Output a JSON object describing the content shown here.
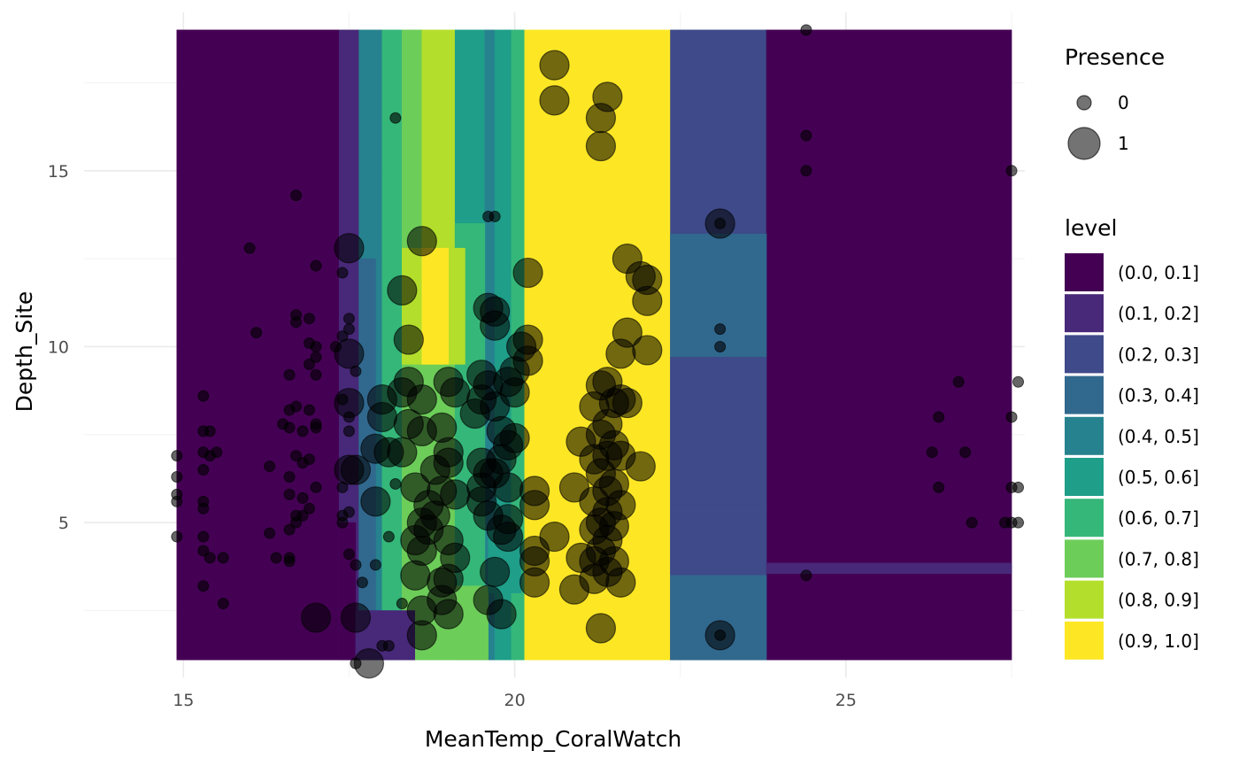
{
  "chart_data": {
    "type": "scatter",
    "subtype": "filled-contour-with-points",
    "title": "",
    "xlabel": "MeanTemp_CoralWatch",
    "ylabel": "Depth_Site",
    "xlim": [
      13.5,
      27.7
    ],
    "ylim": [
      0.6,
      19.5
    ],
    "x_ticks": [
      15,
      20,
      25
    ],
    "y_ticks": [
      5,
      10,
      15
    ],
    "grid": true,
    "legend_position": "right",
    "contour": {
      "x_range": [
        14.9,
        27.5
      ],
      "y_range": [
        1.1,
        19.0
      ],
      "bands": [
        {
          "x": [
            14.9,
            17.35
          ],
          "level": 0
        },
        {
          "x": [
            17.35,
            17.65
          ],
          "level": 1
        },
        {
          "x": [
            17.65,
            18.0
          ],
          "level": 4
        },
        {
          "x": [
            18.0,
            18.3
          ],
          "level": 6
        },
        {
          "x": [
            18.3,
            18.6
          ],
          "level": 7
        },
        {
          "x": [
            18.6,
            19.1
          ],
          "level": 8
        },
        {
          "x": [
            19.1,
            19.55
          ],
          "level": 5
        },
        {
          "x": [
            19.55,
            19.7
          ],
          "level": 4
        },
        {
          "x": [
            19.7,
            19.95
          ],
          "level": 5
        },
        {
          "x": [
            19.95,
            20.15
          ],
          "level": 6
        },
        {
          "x": [
            20.15,
            22.35
          ],
          "level": 9
        },
        {
          "x": [
            22.35,
            23.8
          ],
          "level": 2
        },
        {
          "x": [
            23.8,
            27.5
          ],
          "level": 0
        }
      ],
      "patches": [
        {
          "x": [
            18.3,
            19.25
          ],
          "y": [
            1.1,
            9.5
          ],
          "level": 7
        },
        {
          "x": [
            19.1,
            19.55
          ],
          "y": [
            1.1,
            13.5
          ],
          "level": 6
        },
        {
          "x": [
            18.3,
            19.25
          ],
          "y": [
            9.5,
            12.8
          ],
          "level": 8
        },
        {
          "x": [
            18.6,
            19.0
          ],
          "y": [
            9.5,
            12.8
          ],
          "level": 9
        },
        {
          "x": [
            17.65,
            17.9
          ],
          "y": [
            2.0,
            12.5
          ],
          "level": 3
        },
        {
          "x": [
            17.35,
            17.6
          ],
          "y": [
            1.1,
            5.0
          ],
          "level": 0
        },
        {
          "x": [
            17.6,
            18.5
          ],
          "y": [
            1.1,
            2.5
          ],
          "level": 1
        },
        {
          "x": [
            18.5,
            19.6
          ],
          "y": [
            1.1,
            3.2
          ],
          "level": 7
        },
        {
          "x": [
            19.6,
            20.1
          ],
          "y": [
            3.0,
            4.8
          ],
          "level": 5
        },
        {
          "x": [
            22.35,
            23.8
          ],
          "y": [
            9.7,
            13.2
          ],
          "level": 3
        },
        {
          "x": [
            22.35,
            23.8
          ],
          "y": [
            5.5,
            9.7
          ],
          "level": 2
        },
        {
          "x": [
            22.35,
            23.8
          ],
          "y": [
            3.5,
            5.5
          ],
          "level": 2
        },
        {
          "x": [
            22.35,
            23.8
          ],
          "y": [
            1.1,
            3.5
          ],
          "level": 3
        },
        {
          "x": [
            23.8,
            27.5
          ],
          "y": [
            3.55,
            3.85
          ],
          "level": 1
        }
      ]
    },
    "levels": [
      {
        "label": "(0.0, 0.1]",
        "color": "#440154"
      },
      {
        "label": "(0.1, 0.2]",
        "color": "#482878"
      },
      {
        "label": "(0.2, 0.3]",
        "color": "#3E4A89"
      },
      {
        "label": "(0.3, 0.4]",
        "color": "#31688E"
      },
      {
        "label": "(0.4, 0.5]",
        "color": "#26828E"
      },
      {
        "label": "(0.5, 0.6]",
        "color": "#1F9E89"
      },
      {
        "label": "(0.6, 0.7]",
        "color": "#35B779"
      },
      {
        "label": "(0.7, 0.8]",
        "color": "#6DCD59"
      },
      {
        "label": "(0.8, 0.9]",
        "color": "#B4DE2C"
      },
      {
        "label": "(0.9, 1.0]",
        "color": "#FDE725"
      }
    ],
    "presence_legend": {
      "title": "Presence",
      "entries": [
        {
          "label": "0",
          "value": 0
        },
        {
          "label": "1",
          "value": 1
        }
      ]
    },
    "level_legend_title": "level",
    "points_presence_0": [
      [
        14.9,
        6.9
      ],
      [
        14.9,
        6.3
      ],
      [
        14.9,
        5.8
      ],
      [
        14.9,
        5.6
      ],
      [
        14.9,
        4.6
      ],
      [
        15.3,
        8.6
      ],
      [
        15.3,
        7.6
      ],
      [
        15.3,
        7.0
      ],
      [
        15.3,
        6.5
      ],
      [
        15.3,
        5.6
      ],
      [
        15.3,
        5.4
      ],
      [
        15.3,
        4.6
      ],
      [
        15.3,
        4.2
      ],
      [
        15.3,
        3.2
      ],
      [
        15.4,
        7.6
      ],
      [
        15.4,
        6.9
      ],
      [
        15.4,
        4.0
      ],
      [
        15.5,
        7.0
      ],
      [
        15.6,
        4.0
      ],
      [
        15.6,
        2.7
      ],
      [
        16.0,
        12.8
      ],
      [
        16.1,
        10.4
      ],
      [
        16.3,
        6.6
      ],
      [
        16.3,
        4.7
      ],
      [
        16.4,
        4.0
      ],
      [
        16.5,
        7.8
      ],
      [
        16.6,
        9.2
      ],
      [
        16.6,
        8.2
      ],
      [
        16.6,
        7.7
      ],
      [
        16.6,
        6.3
      ],
      [
        16.6,
        5.8
      ],
      [
        16.6,
        4.8
      ],
      [
        16.6,
        4.0
      ],
      [
        16.6,
        3.9
      ],
      [
        16.7,
        14.3
      ],
      [
        16.7,
        10.9
      ],
      [
        16.7,
        10.7
      ],
      [
        16.7,
        8.3
      ],
      [
        16.7,
        6.9
      ],
      [
        16.7,
        5.2
      ],
      [
        16.7,
        5.0
      ],
      [
        16.8,
        7.6
      ],
      [
        16.8,
        6.7
      ],
      [
        16.8,
        5.7
      ],
      [
        16.8,
        5.2
      ],
      [
        16.9,
        10.8
      ],
      [
        16.9,
        10.1
      ],
      [
        16.9,
        9.5
      ],
      [
        16.9,
        8.2
      ],
      [
        16.9,
        6.8
      ],
      [
        16.9,
        5.4
      ],
      [
        17.0,
        12.3
      ],
      [
        17.0,
        10.0
      ],
      [
        17.0,
        9.7
      ],
      [
        17.0,
        9.2
      ],
      [
        17.0,
        7.8
      ],
      [
        17.0,
        7.7
      ],
      [
        17.0,
        6.0
      ],
      [
        17.3,
        10.0
      ],
      [
        17.4,
        12.1
      ],
      [
        17.4,
        10.3
      ],
      [
        17.4,
        8.5
      ],
      [
        17.4,
        6.0
      ],
      [
        17.4,
        5.2
      ],
      [
        17.4,
        5.0
      ],
      [
        17.5,
        10.8
      ],
      [
        17.5,
        10.5
      ],
      [
        17.5,
        8.0
      ],
      [
        17.5,
        7.6
      ],
      [
        17.5,
        5.3
      ],
      [
        17.5,
        4.1
      ],
      [
        17.6,
        9.3
      ],
      [
        17.6,
        3.8
      ],
      [
        17.6,
        1.0
      ],
      [
        17.7,
        3.3
      ],
      [
        17.9,
        3.8
      ],
      [
        18.0,
        1.5
      ],
      [
        18.1,
        1.5
      ],
      [
        18.1,
        4.6
      ],
      [
        18.2,
        16.5
      ],
      [
        18.2,
        6.1
      ],
      [
        18.3,
        2.7
      ],
      [
        19.6,
        13.7
      ],
      [
        19.7,
        13.7
      ],
      [
        23.1,
        13.5
      ],
      [
        23.1,
        10.5
      ],
      [
        23.1,
        10.0
      ],
      [
        23.1,
        1.8
      ],
      [
        24.4,
        19.0
      ],
      [
        24.4,
        16.0
      ],
      [
        24.4,
        15.0
      ],
      [
        24.4,
        3.5
      ],
      [
        26.3,
        7.0
      ],
      [
        26.4,
        8.0
      ],
      [
        26.4,
        6.0
      ],
      [
        26.7,
        9.0
      ],
      [
        26.8,
        7.0
      ],
      [
        26.9,
        5.0
      ],
      [
        27.4,
        5.0
      ],
      [
        27.5,
        15.0
      ],
      [
        27.5,
        8.0
      ],
      [
        27.5,
        6.0
      ],
      [
        27.5,
        5.0
      ],
      [
        27.6,
        9.0
      ],
      [
        27.6,
        6.0
      ],
      [
        27.6,
        5.0
      ]
    ],
    "points_presence_1": [
      [
        17.0,
        2.3
      ],
      [
        17.5,
        12.8
      ],
      [
        17.5,
        9.8
      ],
      [
        17.5,
        8.4
      ],
      [
        17.5,
        6.5
      ],
      [
        17.6,
        6.5
      ],
      [
        17.6,
        2.3
      ],
      [
        17.8,
        1.0
      ],
      [
        17.9,
        5.6
      ],
      [
        17.9,
        7.1
      ],
      [
        18.0,
        8.0
      ],
      [
        18.0,
        8.5
      ],
      [
        18.1,
        7.0
      ],
      [
        18.3,
        11.6
      ],
      [
        18.3,
        7.0
      ],
      [
        18.3,
        8.7
      ],
      [
        18.4,
        10.2
      ],
      [
        18.4,
        9.0
      ],
      [
        18.4,
        7.8
      ],
      [
        18.5,
        6.0
      ],
      [
        18.5,
        4.5
      ],
      [
        18.5,
        3.5
      ],
      [
        18.6,
        13.0
      ],
      [
        18.6,
        8.5
      ],
      [
        18.6,
        7.6
      ],
      [
        18.6,
        5.0
      ],
      [
        18.6,
        4.2
      ],
      [
        18.6,
        2.5
      ],
      [
        18.6,
        1.8
      ],
      [
        18.7,
        5.5
      ],
      [
        18.7,
        4.8
      ],
      [
        18.8,
        6.5
      ],
      [
        18.8,
        5.2
      ],
      [
        18.9,
        7.7
      ],
      [
        18.9,
        5.9
      ],
      [
        18.9,
        3.3
      ],
      [
        18.9,
        2.8
      ],
      [
        19.0,
        9.0
      ],
      [
        19.0,
        7.0
      ],
      [
        19.0,
        6.7
      ],
      [
        19.0,
        4.5
      ],
      [
        19.0,
        3.4
      ],
      [
        19.0,
        2.4
      ],
      [
        19.1,
        8.7
      ],
      [
        19.1,
        5.8
      ],
      [
        19.1,
        4.0
      ],
      [
        19.4,
        8.1
      ],
      [
        19.5,
        9.2
      ],
      [
        19.5,
        8.5
      ],
      [
        19.5,
        6.7
      ],
      [
        19.5,
        6.0
      ],
      [
        19.5,
        5.6
      ],
      [
        19.6,
        11.1
      ],
      [
        19.6,
        8.9
      ],
      [
        19.6,
        6.4
      ],
      [
        19.6,
        5.2
      ],
      [
        19.6,
        2.8
      ],
      [
        19.7,
        11.0
      ],
      [
        19.7,
        10.6
      ],
      [
        19.7,
        8.3
      ],
      [
        19.7,
        6.4
      ],
      [
        19.7,
        3.6
      ],
      [
        19.8,
        7.6
      ],
      [
        19.8,
        6.8
      ],
      [
        19.8,
        4.8
      ],
      [
        19.8,
        2.4
      ],
      [
        19.9,
        9.0
      ],
      [
        19.9,
        7.2
      ],
      [
        19.9,
        6.0
      ],
      [
        19.9,
        5.1
      ],
      [
        19.9,
        4.6
      ],
      [
        20.0,
        9.3
      ],
      [
        20.0,
        8.7
      ],
      [
        20.0,
        7.4
      ],
      [
        20.1,
        10.0
      ],
      [
        20.2,
        12.1
      ],
      [
        20.2,
        10.2
      ],
      [
        20.2,
        9.6
      ],
      [
        20.3,
        5.9
      ],
      [
        20.3,
        5.5
      ],
      [
        20.3,
        4.2
      ],
      [
        20.3,
        3.9
      ],
      [
        20.3,
        3.3
      ],
      [
        20.6,
        18.0
      ],
      [
        20.6,
        17.0
      ],
      [
        20.6,
        4.6
      ],
      [
        20.9,
        6.0
      ],
      [
        20.9,
        3.1
      ],
      [
        21.0,
        7.3
      ],
      [
        21.0,
        4.0
      ],
      [
        21.2,
        8.3
      ],
      [
        21.2,
        6.8
      ],
      [
        21.2,
        5.6
      ],
      [
        21.2,
        4.8
      ],
      [
        21.2,
        3.9
      ],
      [
        21.2,
        3.4
      ],
      [
        21.3,
        16.5
      ],
      [
        21.3,
        15.7
      ],
      [
        21.3,
        8.9
      ],
      [
        21.3,
        7.5
      ],
      [
        21.3,
        6.4
      ],
      [
        21.3,
        5.0
      ],
      [
        21.3,
        4.2
      ],
      [
        21.3,
        2.0
      ],
      [
        21.4,
        17.1
      ],
      [
        21.4,
        9.0
      ],
      [
        21.4,
        7.8
      ],
      [
        21.4,
        6.9
      ],
      [
        21.4,
        5.9
      ],
      [
        21.4,
        5.3
      ],
      [
        21.4,
        4.5
      ],
      [
        21.4,
        3.6
      ],
      [
        21.5,
        8.4
      ],
      [
        21.5,
        7.2
      ],
      [
        21.5,
        6.1
      ],
      [
        21.5,
        4.9
      ],
      [
        21.5,
        3.9
      ],
      [
        21.6,
        9.8
      ],
      [
        21.6,
        8.5
      ],
      [
        21.6,
        6.9
      ],
      [
        21.6,
        5.5
      ],
      [
        21.6,
        3.3
      ],
      [
        21.7,
        12.5
      ],
      [
        21.7,
        10.4
      ],
      [
        21.7,
        8.4
      ],
      [
        21.9,
        12.0
      ],
      [
        21.9,
        6.6
      ],
      [
        22.0,
        11.9
      ],
      [
        22.0,
        11.3
      ],
      [
        22.0,
        9.9
      ],
      [
        23.1,
        13.5
      ],
      [
        23.1,
        1.8
      ]
    ]
  }
}
